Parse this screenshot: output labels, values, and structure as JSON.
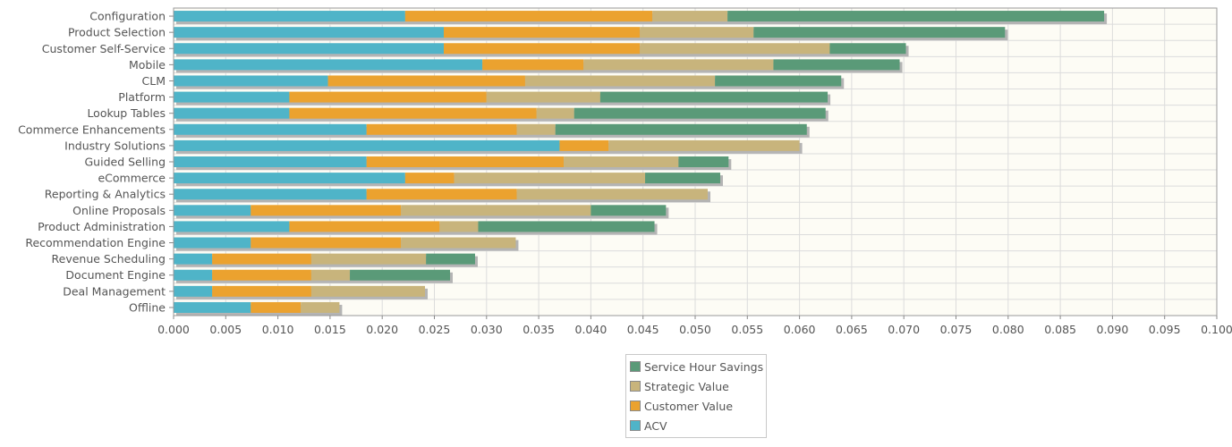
{
  "chart_data": {
    "type": "bar",
    "orientation": "horizontal",
    "stacked": true,
    "title": "",
    "xlabel": "",
    "ylabel": "",
    "xlim": [
      0,
      0.1
    ],
    "x_ticks": [
      "0.000",
      "0.005",
      "0.010",
      "0.015",
      "0.020",
      "0.025",
      "0.030",
      "0.035",
      "0.040",
      "0.045",
      "0.050",
      "0.055",
      "0.060",
      "0.065",
      "0.070",
      "0.075",
      "0.080",
      "0.085",
      "0.090",
      "0.095",
      "0.100"
    ],
    "grid": true,
    "legend_position": "bottom",
    "background": "#fdfcf5",
    "categories": [
      "Configuration",
      "Product Selection",
      "Customer Self-Service",
      "Mobile",
      "CLM",
      "Platform",
      "Lookup Tables",
      "Commerce Enhancements",
      "Industry Solutions",
      "Guided Selling",
      "eCommerce",
      "Reporting & Analytics",
      "Online Proposals",
      "Product Administration",
      "Recommendation Engine",
      "Revenue Scheduling",
      "Document Engine",
      "Deal Management",
      "Offline"
    ],
    "series": [
      {
        "name": "ACV",
        "color": "#4fb4c8",
        "values": [
          0.0222,
          0.0259,
          0.0259,
          0.0296,
          0.0148,
          0.0111,
          0.0111,
          0.0185,
          0.037,
          0.0185,
          0.0222,
          0.0185,
          0.0074,
          0.0111,
          0.0074,
          0.0037,
          0.0037,
          0.0037,
          0.0074
        ]
      },
      {
        "name": "Customer Value",
        "color": "#eba22f",
        "values": [
          0.0237,
          0.0188,
          0.0188,
          0.0097,
          0.0189,
          0.0189,
          0.0237,
          0.0144,
          0.0047,
          0.0189,
          0.0047,
          0.0144,
          0.0144,
          0.0144,
          0.0144,
          0.0095,
          0.0095,
          0.0095,
          0.0048
        ]
      },
      {
        "name": "Strategic Value",
        "color": "#c8b47c",
        "values": [
          0.0072,
          0.0109,
          0.0182,
          0.0182,
          0.0182,
          0.0109,
          0.0036,
          0.0037,
          0.0183,
          0.011,
          0.0183,
          0.0183,
          0.0182,
          0.0037,
          0.011,
          0.011,
          0.0037,
          0.0109,
          0.0037
        ]
      },
      {
        "name": "Service Hour Savings",
        "color": "#5a9a78",
        "values": [
          0.0361,
          0.0241,
          0.0073,
          0.0121,
          0.0121,
          0.0218,
          0.0241,
          0.0241,
          0,
          0.0048,
          0.0072,
          0,
          0.0072,
          0.0169,
          0,
          0.0047,
          0.0096,
          0,
          0
        ]
      }
    ]
  },
  "legend": {
    "items": [
      {
        "label": "Service Hour Savings",
        "color": "#5a9a78"
      },
      {
        "label": "Strategic Value",
        "color": "#c8b47c"
      },
      {
        "label": "Customer Value",
        "color": "#eba22f"
      },
      {
        "label": "ACV",
        "color": "#4fb4c8"
      }
    ]
  }
}
